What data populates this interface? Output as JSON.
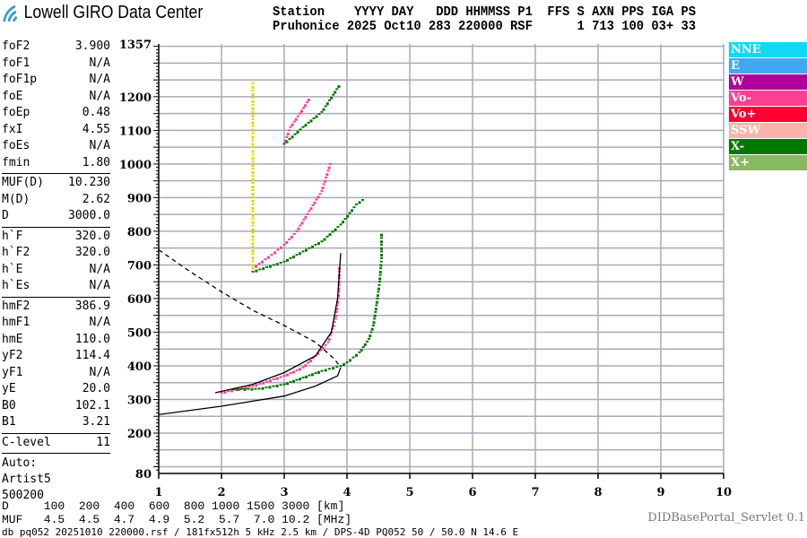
{
  "header": {
    "logo_text": "Lowell GIRO Data Center",
    "row1": "Station    YYYY DAY   DDD HHMMSS P1  FFS S AXN PPS IGA PS",
    "row2": "Pruhonice 2025 Oct10 283 220000 RSF      1 713 100 03+ 33"
  },
  "params": {
    "groups": [
      [
        [
          "foF2",
          "3.900"
        ],
        [
          "foF1",
          "N/A"
        ],
        [
          "foF1p",
          "N/A"
        ],
        [
          "foE",
          "N/A"
        ],
        [
          "foEp",
          "0.48"
        ],
        [
          "fxI",
          "4.55"
        ],
        [
          "foEs",
          "N/A"
        ],
        [
          "fmin",
          "1.80"
        ]
      ],
      [
        [
          "MUF(D)",
          "10.230"
        ],
        [
          "M(D)",
          "2.62"
        ],
        [
          "D",
          "3000.0"
        ]
      ],
      [
        [
          "h`F",
          "320.0"
        ],
        [
          "h`F2",
          "320.0"
        ],
        [
          "h`E",
          "N/A"
        ],
        [
          "h`Es",
          "N/A"
        ]
      ],
      [
        [
          "hmF2",
          "386.9"
        ],
        [
          "hmF1",
          "N/A"
        ],
        [
          "hmE",
          "110.0"
        ],
        [
          "yF2",
          "114.4"
        ],
        [
          "yF1",
          "N/A"
        ],
        [
          "yE",
          "20.0"
        ],
        [
          "B0",
          "102.1"
        ],
        [
          "B1",
          "3.21"
        ]
      ],
      [
        [
          "C-level",
          "11"
        ]
      ]
    ],
    "auto": [
      "Auto:",
      "Artist5",
      "500200"
    ]
  },
  "dmuf": {
    "row1": "D     100  200  400  600  800 1000 1500 3000 [km]",
    "row2": "MUF   4.5  4.5  4.7  4.9  5.2  5.7  7.0 10.2 [MHz]"
  },
  "footer": "db pq052 20251010 220000.rsf / 181fx512h 5 kHz 2.5 km / DPS-4D PQ052 50 / 50.0 N 14.6 E",
  "servlet": "DIDBasePortal_Servlet 0.1",
  "legend": [
    {
      "label": "NNE",
      "color": "#10d8f8"
    },
    {
      "label": "E",
      "color": "#40a8f0"
    },
    {
      "label": "W",
      "color": "#b0009c"
    },
    {
      "label": "Vo-",
      "color": "#ff4090"
    },
    {
      "label": "Vo+",
      "color": "#ff0030"
    },
    {
      "label": "SSW",
      "color": "#f8b4ac"
    },
    {
      "label": "X-",
      "color": "#007800"
    },
    {
      "label": "X+",
      "color": "#88b860"
    }
  ],
  "chart_data": {
    "type": "scatter",
    "xlim": [
      1,
      10
    ],
    "ylim": [
      80,
      1357
    ],
    "xticks": [
      "1",
      "2",
      "3",
      "4",
      "5",
      "6",
      "7",
      "8",
      "9",
      "10"
    ],
    "yticks": [
      "80",
      "200",
      "300",
      "400",
      "500",
      "600",
      "700",
      "800",
      "900",
      "1000",
      "1100",
      "1200",
      "1357"
    ],
    "grid": true,
    "legend_position": "right",
    "traces": [
      {
        "series": "Vo-",
        "color": "#ff4090",
        "points": [
          [
            2.0,
            320
          ],
          [
            2.5,
            340
          ],
          [
            3.0,
            370
          ],
          [
            3.3,
            395
          ],
          [
            3.5,
            430
          ],
          [
            3.7,
            470
          ],
          [
            3.82,
            540
          ],
          [
            3.87,
            620
          ],
          [
            3.88,
            700
          ]
        ]
      },
      {
        "series": "Vo-",
        "color": "#ff4090",
        "points": [
          [
            2.5,
            690
          ],
          [
            2.8,
            730
          ],
          [
            3.0,
            760
          ],
          [
            3.2,
            800
          ],
          [
            3.4,
            860
          ],
          [
            3.6,
            920
          ],
          [
            3.7,
            980
          ],
          [
            3.75,
            1010
          ]
        ]
      },
      {
        "series": "Vo-",
        "color": "#ff4090",
        "points": [
          [
            3.0,
            1060
          ],
          [
            3.1,
            1110
          ],
          [
            3.25,
            1150
          ],
          [
            3.42,
            1200
          ]
        ]
      },
      {
        "series": "X-",
        "color": "#007800",
        "points": [
          [
            2.2,
            330
          ],
          [
            2.6,
            332
          ],
          [
            3.0,
            345
          ],
          [
            3.3,
            365
          ],
          [
            3.6,
            385
          ],
          [
            3.9,
            400
          ],
          [
            4.0,
            410
          ],
          [
            4.2,
            440
          ],
          [
            4.35,
            480
          ],
          [
            4.42,
            520
          ],
          [
            4.47,
            580
          ],
          [
            4.52,
            650
          ],
          [
            4.55,
            720
          ],
          [
            4.55,
            800
          ]
        ]
      },
      {
        "series": "X-",
        "color": "#007800",
        "points": [
          [
            2.5,
            680
          ],
          [
            3.0,
            710
          ],
          [
            3.3,
            740
          ],
          [
            3.6,
            770
          ],
          [
            3.9,
            820
          ],
          [
            4.15,
            880
          ],
          [
            4.3,
            900
          ]
        ]
      },
      {
        "series": "X-",
        "color": "#007800",
        "points": [
          [
            3.0,
            1060
          ],
          [
            3.3,
            1110
          ],
          [
            3.6,
            1155
          ],
          [
            3.9,
            1240
          ]
        ]
      },
      {
        "series": "",
        "color": "#d8d800",
        "points": [
          [
            2.5,
            690
          ],
          [
            2.5,
            1250
          ]
        ]
      }
    ],
    "profiles": [
      {
        "style": "solid",
        "points": [
          [
            1.9,
            320
          ],
          [
            2.5,
            345
          ],
          [
            3.0,
            380
          ],
          [
            3.5,
            430
          ],
          [
            3.75,
            500
          ],
          [
            3.85,
            600
          ],
          [
            3.9,
            735
          ]
        ]
      },
      {
        "style": "solid",
        "points": [
          [
            1.0,
            255
          ],
          [
            2.0,
            280
          ],
          [
            3.0,
            310
          ],
          [
            3.5,
            340
          ],
          [
            3.85,
            370
          ],
          [
            3.9,
            395
          ]
        ]
      },
      {
        "style": "dashed",
        "points": [
          [
            1.0,
            745
          ],
          [
            1.5,
            680
          ],
          [
            2.0,
            620
          ],
          [
            2.5,
            565
          ],
          [
            3.0,
            520
          ],
          [
            3.5,
            470
          ],
          [
            3.8,
            420
          ],
          [
            3.9,
            395
          ]
        ]
      }
    ]
  }
}
